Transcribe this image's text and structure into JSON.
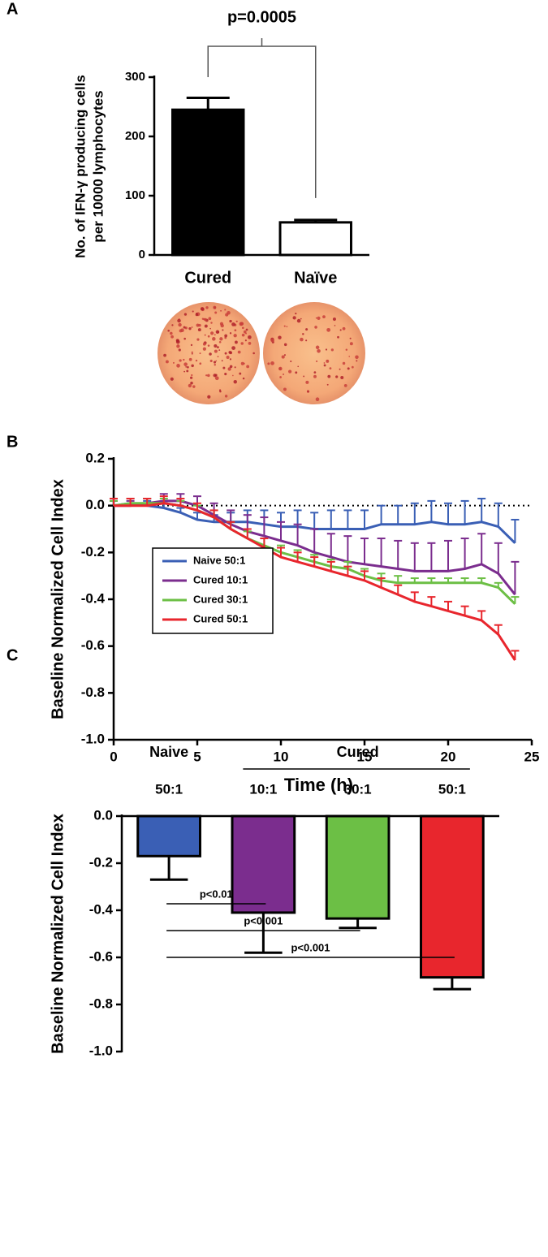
{
  "chart_data": [
    {
      "type": "bar",
      "panel": "A",
      "ylabel": [
        "No. of IFN-γ producing cells",
        "per 10000 lymphocytes"
      ],
      "categories": [
        "Cured",
        "Naïve"
      ],
      "label_colors": [
        "#e8343a",
        "#000000"
      ],
      "values": [
        245,
        55
      ],
      "errors": [
        20,
        4
      ],
      "colors": [
        "#000000",
        "#ffffff"
      ],
      "ylim": [
        0,
        300
      ],
      "yticks": [
        0,
        100,
        200,
        300
      ],
      "annotation": "p=0.0005"
    },
    {
      "type": "line",
      "panel": "B",
      "xlabel": "Time (h)",
      "ylabel": "Baseline Normalized Cell Index",
      "x": [
        0,
        1,
        2,
        3,
        4,
        5,
        6,
        7,
        8,
        9,
        10,
        11,
        12,
        13,
        14,
        15,
        16,
        17,
        18,
        19,
        20,
        21,
        22,
        23,
        24
      ],
      "xlim": [
        0,
        25
      ],
      "xticks": [
        0,
        5,
        10,
        15,
        20,
        25
      ],
      "ylim": [
        -1.0,
        0.2
      ],
      "yticks": [
        {
          "value": -1.0,
          "label": "-1.0"
        },
        {
          "value": -0.8,
          "label": "-0.8"
        },
        {
          "value": -0.6,
          "label": "-0.6"
        },
        {
          "value": -0.4,
          "label": "-0.4"
        },
        {
          "value": -0.2,
          "label": "-0.2"
        },
        {
          "value": 0,
          "label": "0.0"
        },
        {
          "value": 0.2,
          "label": "0.2"
        }
      ],
      "reference_line": 0,
      "legend": "center left",
      "series": [
        {
          "name": "Naive 50:1",
          "color": "#3a5fb5",
          "values": [
            0,
            0.01,
            0,
            -0.01,
            -0.03,
            -0.06,
            -0.07,
            -0.07,
            -0.07,
            -0.08,
            -0.09,
            -0.09,
            -0.1,
            -0.1,
            -0.1,
            -0.1,
            -0.08,
            -0.08,
            -0.08,
            -0.07,
            -0.08,
            -0.08,
            -0.07,
            -0.09,
            -0.16
          ],
          "errors": [
            0.02,
            0.02,
            0.02,
            0.02,
            0.02,
            0.03,
            0.03,
            0.04,
            0.05,
            0.06,
            0.06,
            0.07,
            0.07,
            0.08,
            0.08,
            0.08,
            0.08,
            0.08,
            0.09,
            0.09,
            0.09,
            0.1,
            0.1,
            0.1,
            0.1
          ]
        },
        {
          "name": "Cured 10:1",
          "color": "#7b2d8e",
          "values": [
            0,
            0,
            0.01,
            0.02,
            0.02,
            0,
            -0.04,
            -0.08,
            -0.11,
            -0.13,
            -0.15,
            -0.17,
            -0.2,
            -0.22,
            -0.24,
            -0.25,
            -0.26,
            -0.27,
            -0.28,
            -0.28,
            -0.28,
            -0.27,
            -0.25,
            -0.29,
            -0.38
          ],
          "errors": [
            0.02,
            0.02,
            0.02,
            0.03,
            0.03,
            0.04,
            0.05,
            0.06,
            0.07,
            0.08,
            0.08,
            0.09,
            0.1,
            0.1,
            0.11,
            0.11,
            0.12,
            0.12,
            0.12,
            0.12,
            0.13,
            0.13,
            0.13,
            0.13,
            0.14
          ]
        },
        {
          "name": "Cured 30:1",
          "color": "#6cbf45",
          "values": [
            0,
            0.01,
            0.01,
            0.01,
            0,
            -0.02,
            -0.05,
            -0.1,
            -0.14,
            -0.17,
            -0.2,
            -0.22,
            -0.24,
            -0.26,
            -0.27,
            -0.3,
            -0.32,
            -0.33,
            -0.33,
            -0.33,
            -0.33,
            -0.33,
            -0.33,
            -0.35,
            -0.42
          ],
          "errors": [
            0.02,
            0.02,
            0.02,
            0.02,
            0.02,
            0.02,
            0.03,
            0.03,
            0.03,
            0.03,
            0.03,
            0.03,
            0.03,
            0.03,
            0.03,
            0.03,
            0.03,
            0.03,
            0.02,
            0.02,
            0.02,
            0.02,
            0.02,
            0.02,
            0.03
          ]
        },
        {
          "name": "Cured 50:1",
          "color": "#e8262d",
          "values": [
            0,
            0,
            0,
            0.01,
            0,
            -0.02,
            -0.05,
            -0.1,
            -0.14,
            -0.18,
            -0.22,
            -0.24,
            -0.26,
            -0.28,
            -0.3,
            -0.32,
            -0.35,
            -0.38,
            -0.41,
            -0.43,
            -0.45,
            -0.47,
            -0.49,
            -0.55,
            -0.66
          ],
          "errors": [
            0.03,
            0.03,
            0.03,
            0.03,
            0.03,
            0.03,
            0.03,
            0.03,
            0.04,
            0.04,
            0.04,
            0.04,
            0.04,
            0.04,
            0.04,
            0.04,
            0.04,
            0.04,
            0.04,
            0.04,
            0.04,
            0.04,
            0.04,
            0.04,
            0.04
          ]
        }
      ]
    },
    {
      "type": "bar",
      "panel": "C",
      "ylabel": [
        "Baseline Normalized Cell Index"
      ],
      "group_labels": [
        "Naive",
        "Cured"
      ],
      "categories": [
        "50:1",
        "10:1",
        "30:1",
        "50:1"
      ],
      "values": [
        -0.17,
        -0.41,
        -0.435,
        -0.685
      ],
      "errors": [
        0.1,
        0.17,
        0.04,
        0.05
      ],
      "colors": [
        "#3a5fb5",
        "#7b2d8e",
        "#6cbf45",
        "#e8262d"
      ],
      "ylim": [
        -1.0,
        0
      ],
      "yticks": [
        {
          "value": -1.0,
          "label": "-1.0"
        },
        {
          "value": -0.8,
          "label": "-0.8"
        },
        {
          "value": -0.6,
          "label": "-0.6"
        },
        {
          "value": -0.4,
          "label": "-0.4"
        },
        {
          "value": -0.2,
          "label": "-0.2"
        },
        {
          "value": 0,
          "label": "0.0"
        }
      ],
      "significance": [
        "p<0.01",
        "p<0.001",
        "p<0.001"
      ]
    }
  ]
}
